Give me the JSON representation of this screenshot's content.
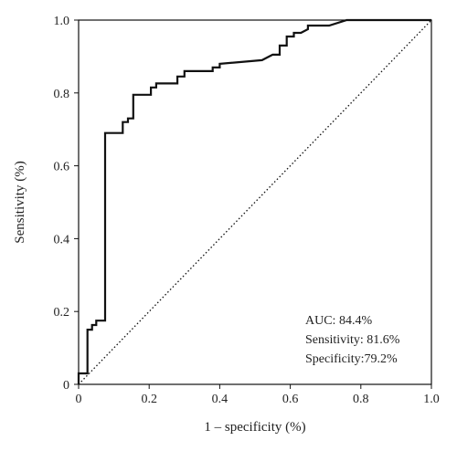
{
  "chart_data": {
    "type": "line",
    "xlabel": "1 – specificity (%)",
    "ylabel": "Sensitivity (%)",
    "xlim": [
      0,
      1
    ],
    "ylim": [
      0,
      1
    ],
    "xticks": [
      "0",
      "0.2",
      "0.4",
      "0.6",
      "0.8",
      "1.0"
    ],
    "yticks": [
      "0",
      "0.2",
      "0.4",
      "0.6",
      "0.8",
      "1.0"
    ],
    "grid": false,
    "series": [
      {
        "style": "solid",
        "color": "#111111",
        "x": [
          0.0,
          0.0,
          0.025,
          0.025,
          0.038,
          0.038,
          0.05,
          0.05,
          0.075,
          0.075,
          0.125,
          0.125,
          0.14,
          0.14,
          0.155,
          0.155,
          0.205,
          0.205,
          0.22,
          0.22,
          0.28,
          0.28,
          0.3,
          0.3,
          0.38,
          0.38,
          0.4,
          0.4,
          0.52,
          0.55,
          0.57,
          0.57,
          0.59,
          0.59,
          0.61,
          0.61,
          0.63,
          0.65,
          0.65,
          0.67,
          0.71,
          0.76,
          1.0
        ],
        "y": [
          0.0,
          0.03,
          0.03,
          0.15,
          0.15,
          0.163,
          0.163,
          0.175,
          0.175,
          0.69,
          0.69,
          0.72,
          0.72,
          0.73,
          0.73,
          0.795,
          0.795,
          0.815,
          0.815,
          0.826,
          0.826,
          0.845,
          0.845,
          0.86,
          0.86,
          0.87,
          0.87,
          0.88,
          0.89,
          0.905,
          0.905,
          0.93,
          0.93,
          0.955,
          0.955,
          0.965,
          0.965,
          0.975,
          0.985,
          0.985,
          0.985,
          1.0,
          1.0
        ]
      },
      {
        "style": "dotted",
        "color": "#111111",
        "x": [
          0,
          1
        ],
        "y": [
          0,
          1
        ]
      }
    ],
    "annotations": [
      "AUC: 84.4%",
      "Sensitivity: 81.6%",
      "Specificity:79.2%"
    ]
  }
}
